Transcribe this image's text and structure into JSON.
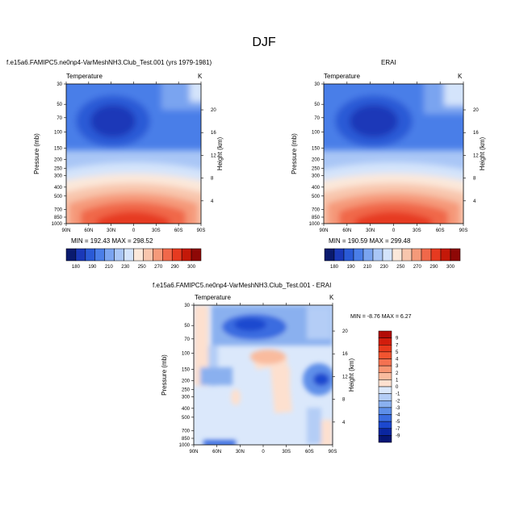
{
  "figure": {
    "title": "DJF"
  },
  "chart_data": [
    {
      "type": "heatmap",
      "panel": "model",
      "title": "f.e15a6.FAMIPC5.ne0np4-VarMeshNH3.Club_Test.001 (yrs 1979-1981)",
      "variable": "Temperature",
      "units": "K",
      "ylabel": "Pressure (mb)",
      "y2label": "Height (km)",
      "x_ticks": [
        "90N",
        "60N",
        "30N",
        "0",
        "30S",
        "60S",
        "90S"
      ],
      "y_ticks": [
        "30",
        "50",
        "70",
        "100",
        "150",
        "200",
        "250",
        "300",
        "400",
        "500",
        "700",
        "850",
        "1000"
      ],
      "y2_ticks": [
        "20",
        "16",
        "12",
        "8",
        "4"
      ],
      "ylim": [
        1000,
        30
      ],
      "min": 192.43,
      "max": 298.52,
      "min_max_text": "MIN = 192.43  MAX = 298.52"
    },
    {
      "type": "heatmap",
      "panel": "reanalysis",
      "title": "ERAI",
      "variable": "Temperature",
      "units": "K",
      "ylabel": "Pressure (mb)",
      "y2label": "Height (km)",
      "x_ticks": [
        "90N",
        "60N",
        "30N",
        "0",
        "30S",
        "60S",
        "90S"
      ],
      "y_ticks": [
        "30",
        "50",
        "70",
        "100",
        "150",
        "200",
        "250",
        "300",
        "400",
        "500",
        "700",
        "850",
        "1000"
      ],
      "y2_ticks": [
        "20",
        "16",
        "12",
        "8",
        "4"
      ],
      "ylim": [
        1000,
        30
      ],
      "min": 190.59,
      "max": 299.48,
      "min_max_text": "MIN = 190.59  MAX = 299.48"
    },
    {
      "type": "heatmap",
      "panel": "difference",
      "title": "f.e15a6.FAMIPC5.ne0np4-VarMeshNH3.Club_Test.001 - ERAI",
      "variable": "Temperature",
      "units": "K",
      "ylabel": "Pressure (mb)",
      "y2label": "Height (km)",
      "x_ticks": [
        "90N",
        "60N",
        "30N",
        "0",
        "30S",
        "60S",
        "90S"
      ],
      "y_ticks": [
        "30",
        "50",
        "70",
        "100",
        "150",
        "200",
        "250",
        "300",
        "400",
        "500",
        "700",
        "850",
        "1000"
      ],
      "y2_ticks": [
        "20",
        "16",
        "12",
        "8",
        "4"
      ],
      "ylim": [
        1000,
        30
      ],
      "min": -8.76,
      "max": 6.27,
      "min_max_text": "MIN = -8.76  MAX =  6.27"
    }
  ],
  "colorbars": {
    "temperature": {
      "labels": [
        "180",
        "190",
        "210",
        "230",
        "250",
        "270",
        "290",
        "300"
      ],
      "colors": [
        "#0a1a6e",
        "#1a38b8",
        "#2a5ad6",
        "#4a7ee8",
        "#7aa4f0",
        "#a9c6f6",
        "#d4e4fb",
        "#fbe8da",
        "#f8c6ad",
        "#f59a7a",
        "#f0684a",
        "#e63a20",
        "#c41808",
        "#8e0806"
      ]
    },
    "difference": {
      "labels": [
        "9",
        "7",
        "5",
        "4",
        "3",
        "2",
        "1",
        "0",
        "-1",
        "-2",
        "-3",
        "-4",
        "-5",
        "-7",
        "-9"
      ],
      "colors": [
        "#b30c06",
        "#d21d0c",
        "#e8391c",
        "#f25430",
        "#f47251",
        "#f79673",
        "#f9bb9e",
        "#fde0cf",
        "#dbe8fb",
        "#b4cdf6",
        "#8ab0ef",
        "#5e8fe9",
        "#3a6ce0",
        "#1c48cf",
        "#0a26a0",
        "#061675"
      ]
    }
  }
}
